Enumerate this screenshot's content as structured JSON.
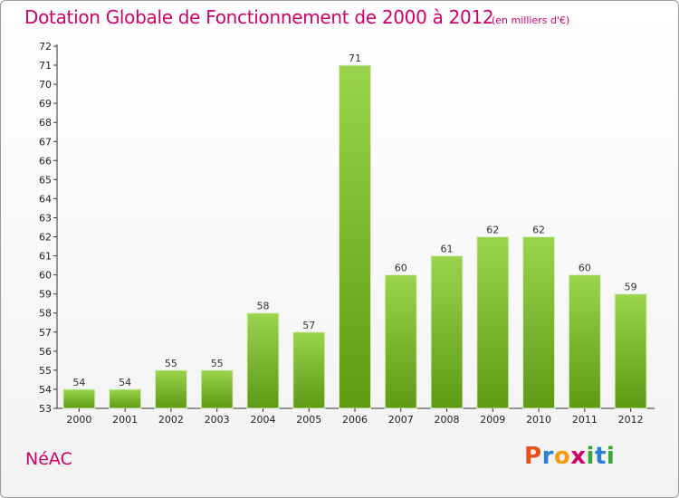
{
  "header": {
    "title": "Dotation Globale de Fonctionnement de 2000 à 2012",
    "subtitle": "(en milliers d'€)"
  },
  "footer": {
    "commune": "NéAC",
    "logo_text": "Proxiti"
  },
  "colors": {
    "accent": "#d0006a",
    "bar_light": "#9bd34c",
    "bar_dark": "#5e9a14"
  },
  "chart_data": {
    "type": "bar",
    "title": "Dotation Globale de Fonctionnement de 2000 à 2012",
    "subtitle": "(en milliers d'€)",
    "xlabel": "",
    "ylabel": "",
    "categories": [
      "2000",
      "2001",
      "2002",
      "2003",
      "2004",
      "2005",
      "2006",
      "2007",
      "2008",
      "2009",
      "2010",
      "2011",
      "2012"
    ],
    "values": [
      54,
      54,
      55,
      55,
      58,
      57,
      71,
      60,
      61,
      62,
      62,
      60,
      59
    ],
    "ylim": [
      53,
      72
    ],
    "yticks": [
      53,
      54,
      55,
      56,
      57,
      58,
      59,
      60,
      61,
      62,
      63,
      64,
      65,
      66,
      67,
      68,
      69,
      70,
      71,
      72
    ],
    "grid": false,
    "legend": "none"
  }
}
